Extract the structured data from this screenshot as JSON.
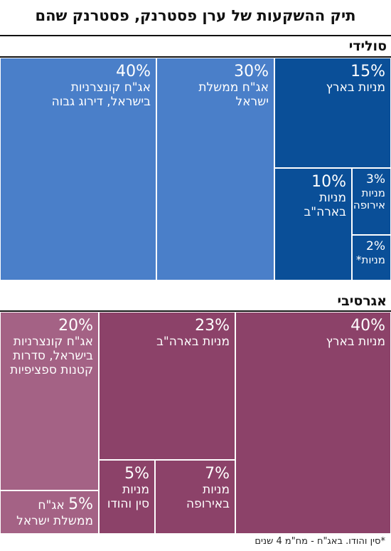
{
  "title": "תיק ההשקעות של ערן פסטרנק, פסטרנק שהם",
  "footnote": "*סין והודו. באג\"ח - מח\"מ 4 שנים",
  "chart_data": [
    {
      "type": "treemap",
      "title": "סולידי",
      "cells": [
        {
          "pct": "40%",
          "label": "אג\"ח קונצרניות\nבישראל, דירוג גבוה",
          "value": 40,
          "color": "#4a7fc9"
        },
        {
          "pct": "30%",
          "label": "אג\"ח ממשלת\nישראל",
          "value": 30,
          "color": "#4a7fc9"
        },
        {
          "pct": "15%",
          "label": "מניות בארץ",
          "value": 15,
          "color": "#0a4f98"
        },
        {
          "pct": "10%",
          "label": "מניות\nבארה\"ב",
          "value": 10,
          "color": "#0a4f98"
        },
        {
          "pct": "3%",
          "label": "מניות\nאירופה",
          "value": 3,
          "color": "#0a4f98"
        },
        {
          "pct": "2%",
          "label": "מניות*",
          "value": 2,
          "color": "#0a4f98"
        }
      ]
    },
    {
      "type": "treemap",
      "title": "אגרסיבי",
      "cells": [
        {
          "pct": "40%",
          "label": "מניות בארץ",
          "value": 40,
          "color": "#8c4269"
        },
        {
          "pct": "23%",
          "label": "מניות בארה\"ב",
          "value": 23,
          "color": "#8c4269"
        },
        {
          "pct": "20%",
          "label": "אג\"ח קונצרניות\nבישראל, סדרות\nקטנות ספציפיות",
          "value": 20,
          "color": "#a46285"
        },
        {
          "pct": "7%",
          "label": "מניות\nבאירופה",
          "value": 7,
          "color": "#8c4269"
        },
        {
          "pct": "5%",
          "label": "מניות\nסין והודו",
          "value": 5,
          "color": "#8c4269"
        },
        {
          "pct": "5%",
          "label": "אג\"ח\nממשלת ישראל",
          "value": 5,
          "color": "#a46285",
          "inline": true
        }
      ]
    }
  ]
}
